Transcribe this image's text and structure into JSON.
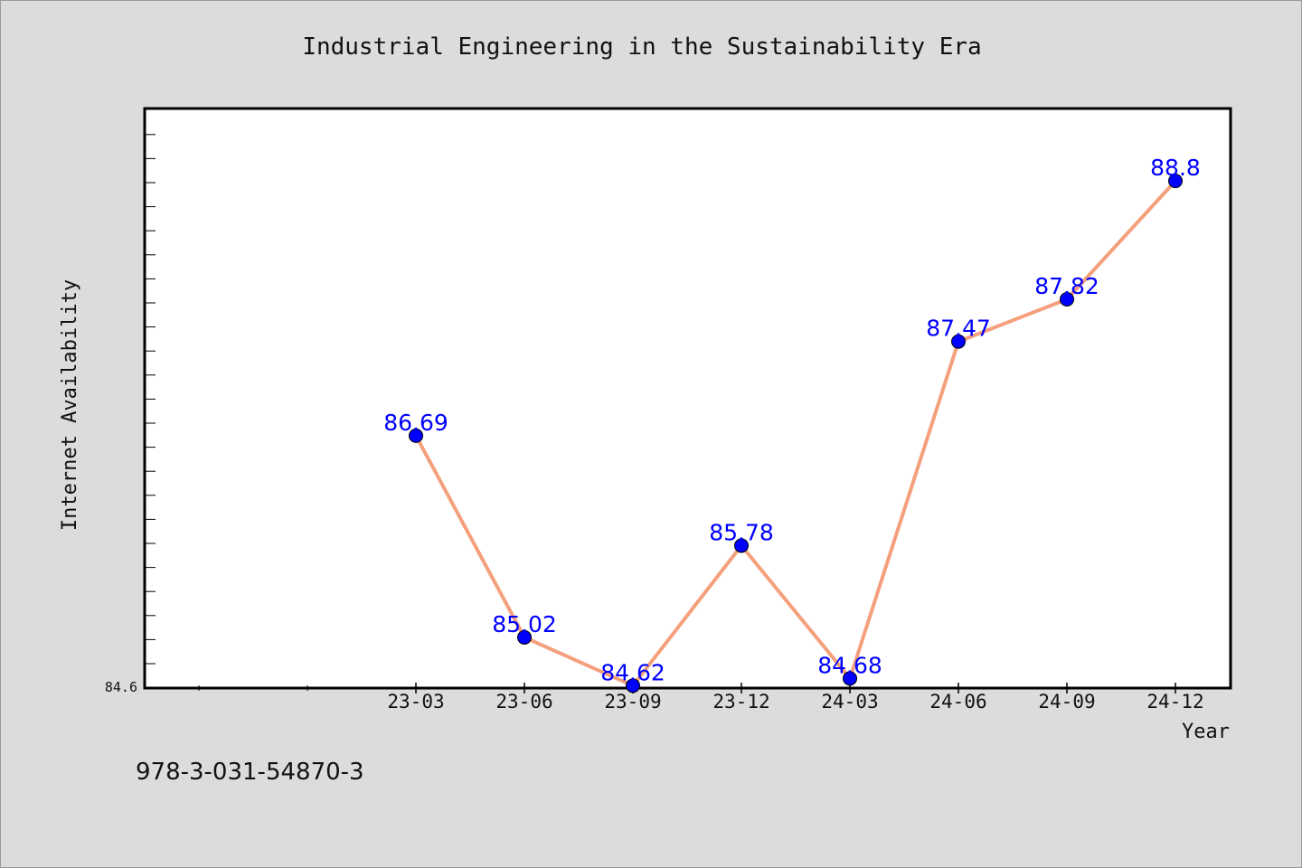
{
  "chart_data": {
    "type": "line",
    "title": "Industrial Engineering in the Sustainability Era",
    "xlabel": "Year",
    "ylabel": "Internet Availability",
    "categories": [
      "23-03",
      "23-06",
      "23-09",
      "23-12",
      "24-03",
      "24-06",
      "24-09",
      "24-12"
    ],
    "series": [
      {
        "values": [
          86.69,
          85.02,
          84.62,
          85.78,
          84.68,
          87.47,
          87.82,
          88.8
        ],
        "labels": [
          "86.69",
          "85.02",
          "84.62",
          "85.78",
          "84.68",
          "87.47",
          "87.82",
          "88.8"
        ]
      }
    ],
    "ylim": [
      84.6,
      89.4
    ],
    "y_tick_labels": [
      "84.6"
    ],
    "grid": false,
    "legend": "none",
    "colors": {
      "line": "#f4a07c",
      "marker": "#0000ff",
      "label": "#0000ff",
      "plot_bg": "#ffffff",
      "page_bg": "#dcdcdc"
    }
  },
  "footer": {
    "text": "978-3-031-54870-3"
  }
}
